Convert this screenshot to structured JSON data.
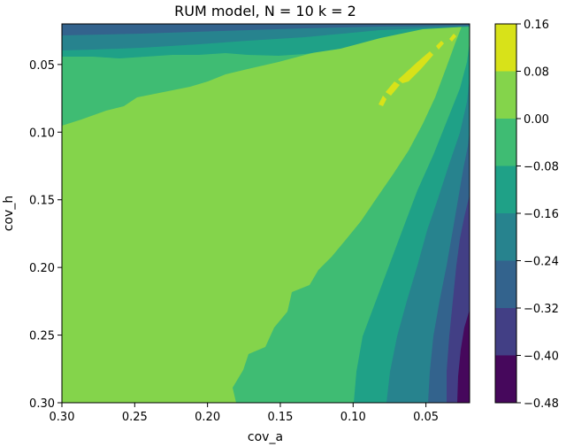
{
  "chart_data": {
    "type": "heatmap",
    "subtype": "filled-contour",
    "title": "RUM model, N = 10 k = 2",
    "xlabel": "cov_a",
    "ylabel": "cov_h",
    "xlim": [
      0.3,
      0.02
    ],
    "ylim": [
      0.3,
      0.02
    ],
    "x_ticks": [
      "0.30",
      "0.25",
      "0.20",
      "0.15",
      "0.10",
      "0.05"
    ],
    "x_tick_values": [
      0.3,
      0.25,
      0.2,
      0.15,
      0.1,
      0.05
    ],
    "y_ticks": [
      "0.05",
      "0.10",
      "0.15",
      "0.20",
      "0.25",
      "0.30"
    ],
    "y_tick_values": [
      0.05,
      0.1,
      0.15,
      0.2,
      0.25,
      0.3
    ],
    "colormap": "viridis",
    "colorbar": {
      "levels": [
        -0.48,
        -0.4,
        -0.32,
        -0.24,
        -0.16,
        -0.08,
        0.0,
        0.08,
        0.16
      ],
      "tick_labels": [
        "−0.48",
        "−0.40",
        "−0.32",
        "−0.24",
        "−0.16",
        "−0.08",
        "0.00",
        "0.08",
        "0.16"
      ],
      "colors": [
        "#46085c",
        "#423f85",
        "#33638d",
        "#27838e",
        "#1fa187",
        "#3fbc73",
        "#84d44b",
        "#d8e219"
      ]
    },
    "regions": [
      {
        "level_range": [
          0.08,
          0.16
        ],
        "color": "#d8e219",
        "description": "small islands near cov_a 0.03-0.08, cov_h 0.03-0.06"
      },
      {
        "level_range": [
          0.0,
          0.08
        ],
        "color": "#84d44b",
        "description": "large central region, upper left"
      },
      {
        "level_range": [
          -0.08,
          0.0
        ],
        "color": "#3fbc73"
      },
      {
        "level_range": [
          -0.16,
          -0.08
        ],
        "color": "#1fa187"
      },
      {
        "level_range": [
          -0.24,
          -0.16
        ],
        "color": "#27838e"
      },
      {
        "level_range": [
          -0.32,
          -0.24
        ],
        "color": "#33638d"
      },
      {
        "level_range": [
          -0.4,
          -0.32
        ],
        "color": "#423f85"
      },
      {
        "level_range": [
          -0.48,
          -0.4
        ],
        "color": "#46085c"
      }
    ]
  }
}
